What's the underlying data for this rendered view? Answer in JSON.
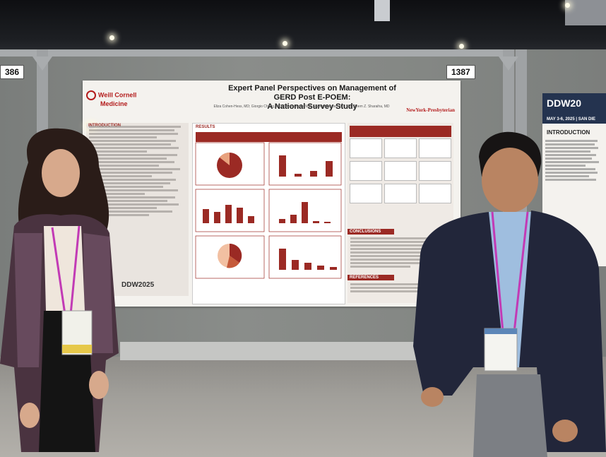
{
  "booth_labels": [
    "386",
    "1387"
  ],
  "poster": {
    "title_line1": "Expert Panel Perspectives on Management of GERD Post E-POEM:",
    "title_line2": "A National Survey Study",
    "authors": "Eliza Cohen-Hess, MD; Giorgio Cheng, MD; Dennis Yang, MD; Shafer Mohaler, MD, MS; Reem Z. Sharaiha, MD",
    "logo_left_1": "Weill Cornell",
    "logo_left_2": "Medicine",
    "logo_right": "NewYork-Presbyterian",
    "sections": {
      "introduction": "INTRODUCTION",
      "results": "RESULTS",
      "conclusions": "CONCLUSIONS",
      "references": "REFERENCES"
    },
    "ddw_logo": "DDW2025"
  },
  "side_poster": {
    "logo": "DDW20",
    "dates": "MAY 3-6, 2025 | SAN DIE",
    "intro_heading": "INTRODUCTION"
  },
  "colors": {
    "brand_red": "#9b2a24",
    "ddw_navy": "#24334f",
    "lanyard": "#c23ab5"
  }
}
